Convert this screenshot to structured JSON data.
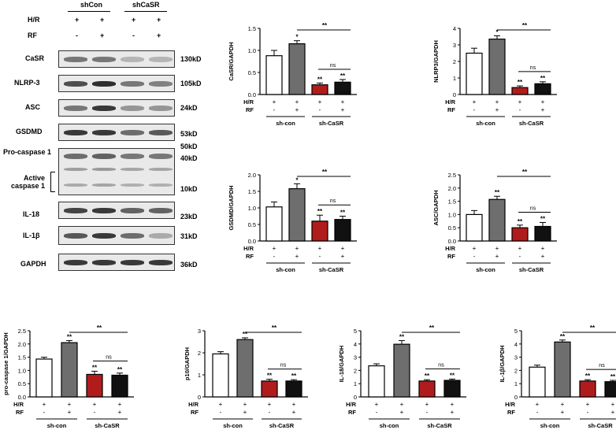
{
  "western_blot": {
    "groups": [
      "shCon",
      "shCaSR"
    ],
    "hr_label": "H/R",
    "rf_label": "RF",
    "hr_signs": [
      "+",
      "+",
      "+",
      "+"
    ],
    "rf_signs": [
      "-",
      "+",
      "-",
      "+"
    ],
    "bracket_label_1": "Active",
    "bracket_label_2": "caspase 1",
    "rows": [
      {
        "name": "CaSR",
        "kd": "130kD"
      },
      {
        "name": "NLRP-3",
        "kd": "105kD"
      },
      {
        "name": "ASC",
        "kd": "24kD"
      },
      {
        "name": "GSDMD",
        "kd": "53kD"
      },
      {
        "name": "Pro-caspase 1",
        "kd_top": "50kD",
        "kd": "40kD",
        "kd_low": "10kD"
      },
      {
        "name": "IL-18",
        "kd": "23kD"
      },
      {
        "name": "IL-1β",
        "kd": "31kD"
      },
      {
        "name": "GAPDH",
        "kd": "36kD"
      }
    ],
    "band_intensity": [
      [
        0.55,
        0.55,
        0.25,
        0.25
      ],
      [
        0.75,
        0.9,
        0.55,
        0.5
      ],
      [
        0.55,
        0.85,
        0.4,
        0.4
      ],
      [
        0.85,
        0.85,
        0.6,
        0.7
      ],
      [
        0.6,
        0.65,
        0.55,
        0.55
      ],
      [
        0.8,
        0.85,
        0.65,
        0.65
      ],
      [
        0.7,
        0.85,
        0.6,
        0.3
      ],
      [
        0.85,
        0.85,
        0.85,
        0.85
      ]
    ]
  },
  "chart_data": [
    {
      "type": "bar",
      "ylabel": "CaSR/GAPDH",
      "ylim": [
        0,
        1.5
      ],
      "yticks": [
        "0.0",
        "0.5",
        "1.0",
        "1.5"
      ],
      "values": [
        0.88,
        1.15,
        0.22,
        0.28
      ],
      "errors": [
        0.12,
        0.07,
        0.04,
        0.06
      ],
      "stars": [
        "",
        "*",
        "**",
        "**"
      ],
      "sig_main": "**",
      "sig_ns": "ns",
      "hr": [
        "+",
        "+",
        "+",
        "+"
      ],
      "rf": [
        "-",
        "+",
        "-",
        "+"
      ],
      "groups": [
        "sh-con",
        "sh-CaSR"
      ],
      "hr_label": "H/R",
      "rf_label": "RF"
    },
    {
      "type": "bar",
      "ylabel": "NLRP3/GAPDH",
      "ylim": [
        0,
        4
      ],
      "yticks": [
        "0",
        "1",
        "2",
        "3",
        "4"
      ],
      "values": [
        2.5,
        3.35,
        0.42,
        0.65
      ],
      "errors": [
        0.3,
        0.2,
        0.1,
        0.12
      ],
      "stars": [
        "",
        "*",
        "**",
        "**"
      ],
      "sig_main": "**",
      "sig_ns": "ns",
      "hr": [
        "+",
        "+",
        "+",
        "+"
      ],
      "rf": [
        "-",
        "+",
        "-",
        "+"
      ],
      "groups": [
        "sh-con",
        "sh-CaSR"
      ],
      "hr_label": "H/R",
      "rf_label": "RF"
    },
    {
      "type": "bar",
      "ylabel": "GSDMD/GAPDH",
      "ylim": [
        0,
        2.0
      ],
      "yticks": [
        "0.0",
        "0.5",
        "1.0",
        "1.5",
        "2.0"
      ],
      "values": [
        1.03,
        1.58,
        0.6,
        0.65
      ],
      "errors": [
        0.15,
        0.15,
        0.18,
        0.1
      ],
      "stars": [
        "",
        "*",
        "**",
        "**"
      ],
      "sig_main": "**",
      "sig_ns": "ns",
      "hr": [
        "+",
        "+",
        "+",
        "+"
      ],
      "rf": [
        "-",
        "+",
        "-",
        "+"
      ],
      "groups": [
        "sh-con",
        "sh-CaSR"
      ],
      "hr_label": "H/R",
      "rf_label": "RF"
    },
    {
      "type": "bar",
      "ylabel": "ASC/GAPDH",
      "ylim": [
        0,
        2.5
      ],
      "yticks": [
        "0.0",
        "0.5",
        "1.0",
        "1.5",
        "2.0",
        "2.5"
      ],
      "values": [
        1.0,
        1.57,
        0.5,
        0.55
      ],
      "errors": [
        0.15,
        0.12,
        0.1,
        0.15
      ],
      "stars": [
        "",
        "**",
        "**",
        "**"
      ],
      "sig_main": "**",
      "sig_ns": "ns",
      "hr": [
        "+",
        "+",
        "+",
        "+"
      ],
      "rf": [
        "-",
        "+",
        "-",
        "+"
      ],
      "groups": [
        "sh-con",
        "sh-CaSR"
      ],
      "hr_label": "H/R",
      "rf_label": "RF"
    },
    {
      "type": "bar",
      "ylabel": "pro-caspase 1/GAPDH",
      "ylim": [
        0,
        2.5
      ],
      "yticks": [
        "0.0",
        "0.5",
        "1.0",
        "1.5",
        "2.0",
        "2.5"
      ],
      "values": [
        1.43,
        2.05,
        0.85,
        0.82
      ],
      "errors": [
        0.07,
        0.08,
        0.12,
        0.08
      ],
      "stars": [
        "",
        "**",
        "**",
        "**"
      ],
      "sig_main": "**",
      "sig_ns": "ns",
      "hr": [
        "+",
        "+",
        "+",
        "+"
      ],
      "rf": [
        "-",
        "+",
        "-",
        "+"
      ],
      "groups": [
        "sh-con",
        "sh-CaSR"
      ],
      "hr_label": "H/R",
      "rf_label": "RF"
    },
    {
      "type": "bar",
      "ylabel": "p10/GAPDH",
      "ylim": [
        0,
        3
      ],
      "yticks": [
        "0",
        "1",
        "2",
        "3"
      ],
      "values": [
        1.95,
        2.6,
        0.72,
        0.72
      ],
      "errors": [
        0.1,
        0.08,
        0.08,
        0.06
      ],
      "stars": [
        "",
        "**",
        "**",
        "**"
      ],
      "sig_main": "**",
      "sig_ns": "ns",
      "hr": [
        "+",
        "+",
        "+",
        "+"
      ],
      "rf": [
        "-",
        "+",
        "-",
        "+"
      ],
      "groups": [
        "sh-con",
        "sh-CaSR"
      ],
      "hr_label": "H/R",
      "rf_label": "RF"
    },
    {
      "type": "bar",
      "ylabel": "IL-18/GAPDH",
      "ylim": [
        0,
        5
      ],
      "yticks": [
        "0",
        "1",
        "2",
        "3",
        "4",
        "5"
      ],
      "values": [
        2.35,
        3.98,
        1.2,
        1.25
      ],
      "errors": [
        0.15,
        0.28,
        0.1,
        0.1
      ],
      "stars": [
        "",
        "**",
        "**",
        "**"
      ],
      "sig_main": "**",
      "sig_ns": "ns",
      "hr": [
        "+",
        "+",
        "+",
        "+"
      ],
      "rf": [
        "-",
        "+",
        "-",
        "+"
      ],
      "groups": [
        "sh-con",
        "sh-CaSR"
      ],
      "hr_label": "H/R",
      "rf_label": "RF"
    },
    {
      "type": "bar",
      "ylabel": "IL-1β/GAPDH",
      "ylim": [
        0,
        5
      ],
      "yticks": [
        "0",
        "1",
        "2",
        "3",
        "4",
        "5"
      ],
      "values": [
        2.25,
        4.15,
        1.2,
        1.15
      ],
      "errors": [
        0.15,
        0.15,
        0.1,
        0.1
      ],
      "stars": [
        "",
        "**",
        "**",
        "**"
      ],
      "sig_main": "**",
      "sig_ns": "ns",
      "hr": [
        "+",
        "+",
        "+",
        "+"
      ],
      "rf": [
        "-",
        "+",
        "-",
        "+"
      ],
      "groups": [
        "sh-con",
        "sh-CaSR"
      ],
      "hr_label": "H/R",
      "rf_label": "RF"
    }
  ],
  "colors": {
    "bar_fills": [
      "#ffffff",
      "#6e6e6e",
      "#b01c1c",
      "#111111"
    ],
    "ink": "#000000"
  }
}
